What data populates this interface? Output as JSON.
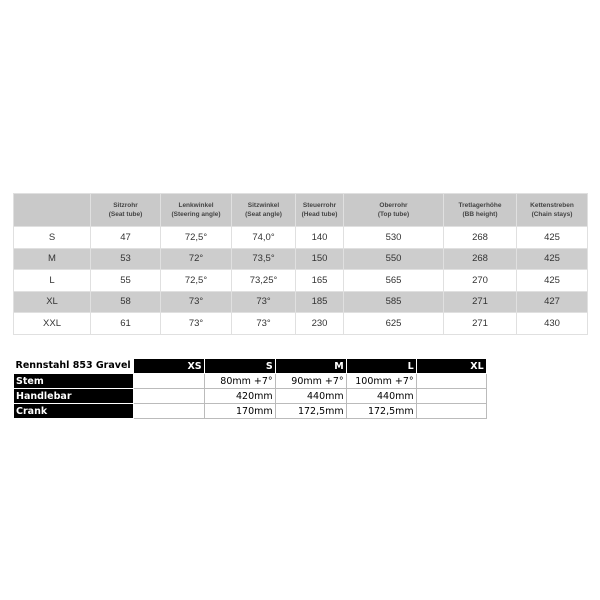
{
  "geometry_table": {
    "headers": [
      {
        "de": "",
        "en": ""
      },
      {
        "de": "Sitzrohr",
        "en": "(Seat tube)"
      },
      {
        "de": "Lenkwinkel",
        "en": "(Steering angle)"
      },
      {
        "de": "Sitzwinkel",
        "en": "(Seat angle)"
      },
      {
        "de": "Steuerrohr",
        "en": "(Head tube)"
      },
      {
        "de": "Oberrohr",
        "en": "(Top tube)"
      },
      {
        "de": "Tretlagerhöhe",
        "en": "(BB height)"
      },
      {
        "de": "Kettenstreben",
        "en": "(Chain stays)"
      }
    ],
    "rows": [
      [
        "S",
        "47",
        "72,5°",
        "74,0°",
        "140",
        "530",
        "268",
        "425"
      ],
      [
        "M",
        "53",
        "72°",
        "73,5°",
        "150",
        "550",
        "268",
        "425"
      ],
      [
        "L",
        "55",
        "72,5°",
        "73,25°",
        "165",
        "565",
        "270",
        "425"
      ],
      [
        "XL",
        "58",
        "73°",
        "73°",
        "185",
        "585",
        "271",
        "427"
      ],
      [
        "XXL",
        "61",
        "73°",
        "73°",
        "230",
        "625",
        "271",
        "430"
      ]
    ]
  },
  "components_table": {
    "title": "Rennstahl 853 Gravel",
    "sizes": [
      "XS",
      "S",
      "M",
      "L",
      "XL"
    ],
    "rows": [
      {
        "label": "Stem",
        "values": [
          "",
          "80mm +7°",
          "90mm +7°",
          "100mm +7°",
          ""
        ]
      },
      {
        "label": "Handlebar",
        "values": [
          "",
          "420mm",
          "440mm",
          "440mm",
          ""
        ]
      },
      {
        "label": "Crank",
        "values": [
          "",
          "170mm",
          "172,5mm",
          "172,5mm",
          ""
        ]
      }
    ]
  }
}
